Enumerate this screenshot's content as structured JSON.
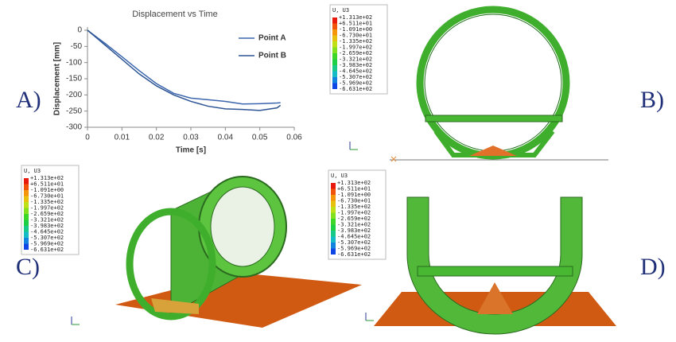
{
  "chart_data": {
    "type": "line",
    "title": "Displacement vs Time",
    "x_label": "Time [s]",
    "y_label": "Displacement [mm]",
    "x": [
      0,
      0.005,
      0.01,
      0.015,
      0.02,
      0.025,
      0.03,
      0.035,
      0.04,
      0.045,
      0.05,
      0.055,
      0.056
    ],
    "series": [
      {
        "name": "Point A",
        "color": "#3b66ad",
        "values": [
          0,
          -40,
          -82,
          -125,
          -165,
          -195,
          -210,
          -215,
          -220,
          -228,
          -227,
          -225,
          -224
        ]
      },
      {
        "name": "Point B",
        "color": "#2d5494",
        "values": [
          0,
          -45,
          -90,
          -135,
          -172,
          -200,
          -220,
          -235,
          -243,
          -245,
          -248,
          -240,
          -232
        ]
      }
    ],
    "xlim": [
      0,
      0.06
    ],
    "ylim": [
      -300,
      0
    ],
    "xticks": [
      0,
      0.01,
      0.02,
      0.03,
      0.04,
      0.05,
      0.06
    ],
    "yticks": [
      -300,
      -250,
      -200,
      -150,
      -100,
      -50,
      0
    ],
    "grid": false,
    "legend": "upper right"
  },
  "panel_labels": [
    "A)",
    "B)",
    "C)",
    "D)"
  ],
  "contour_legends": [
    {
      "title": "U, U3",
      "levels": [
        "+1.313e+02",
        "+6.511e+01",
        "-1.091e+00",
        "-6.730e+01",
        "-1.335e+02",
        "-1.997e+02",
        "-2.659e+02",
        "-3.321e+02",
        "-3.983e+02",
        "-4.645e+02",
        "-5.307e+02",
        "-5.969e+02",
        "-6.631e+02"
      ]
    },
    {
      "title": "U, U3",
      "levels": [
        "+1.313e+02",
        "+6.511e+01",
        "-1.091e+00",
        "-6.730e+01",
        "-1.335e+02",
        "-1.997e+02",
        "-2.659e+02",
        "-3.321e+02",
        "-3.983e+02",
        "-4.645e+02",
        "-5.307e+02",
        "-5.969e+02",
        "-6.631e+02"
      ]
    },
    {
      "title": "U, U3",
      "levels": [
        "+1.313e+02",
        "+6.511e+01",
        "-1.091e+00",
        "-6.730e+01",
        "-1.335e+02",
        "-1.997e+02",
        "-2.659e+02",
        "-3.321e+02",
        "-3.983e+02",
        "-4.645e+02",
        "-5.307e+02",
        "-5.969e+02",
        "-6.631e+02"
      ]
    }
  ]
}
